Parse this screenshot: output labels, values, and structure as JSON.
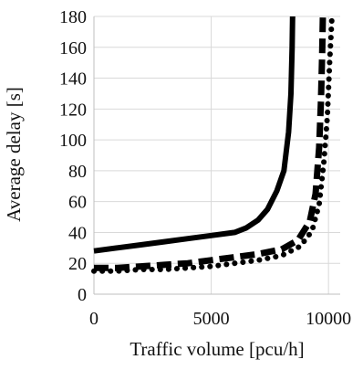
{
  "chart_data": {
    "type": "line",
    "title": "",
    "xlabel": "Traffic volume [pcu/h]",
    "ylabel": "Average delay [s]",
    "xlim": [
      0,
      10500
    ],
    "ylim": [
      0,
      180
    ],
    "xticks": [
      0,
      5000,
      10000
    ],
    "xtick_labels": [
      "0",
      "5000",
      "10000"
    ],
    "yticks": [
      0,
      20,
      40,
      60,
      80,
      100,
      120,
      140,
      160,
      180
    ],
    "ytick_labels": [
      "0",
      "20",
      "40",
      "60",
      "80",
      "100",
      "120",
      "140",
      "160",
      "180"
    ],
    "grid": true,
    "legend": "none",
    "series": [
      {
        "style": "solid",
        "color": "#000000",
        "x": [
          0,
          1000,
          2000,
          3000,
          4000,
          5000,
          6000,
          6500,
          7000,
          7400,
          7800,
          8100,
          8300,
          8400,
          8450,
          8470
        ],
        "y": [
          28,
          30,
          32,
          34,
          36,
          38,
          40,
          43,
          48,
          55,
          67,
          80,
          105,
          130,
          160,
          180
        ]
      },
      {
        "style": "dashed",
        "color": "#000000",
        "x": [
          0,
          1000,
          2000,
          3000,
          4000,
          5000,
          6000,
          7000,
          8000,
          8700,
          9200,
          9450,
          9600,
          9680,
          9730,
          9760
        ],
        "y": [
          17,
          17,
          18,
          19,
          20,
          22,
          24,
          26,
          29,
          35,
          47,
          65,
          95,
          125,
          155,
          180
        ]
      },
      {
        "style": "dotted",
        "color": "#000000",
        "x": [
          0,
          1000,
          2000,
          3000,
          4000,
          5000,
          6000,
          7000,
          8000,
          8800,
          9300,
          9600,
          9800,
          9950,
          10050,
          10150
        ],
        "y": [
          15,
          15,
          16,
          16,
          17,
          18,
          20,
          22,
          25,
          31,
          41,
          58,
          85,
          115,
          150,
          180
        ]
      }
    ]
  }
}
